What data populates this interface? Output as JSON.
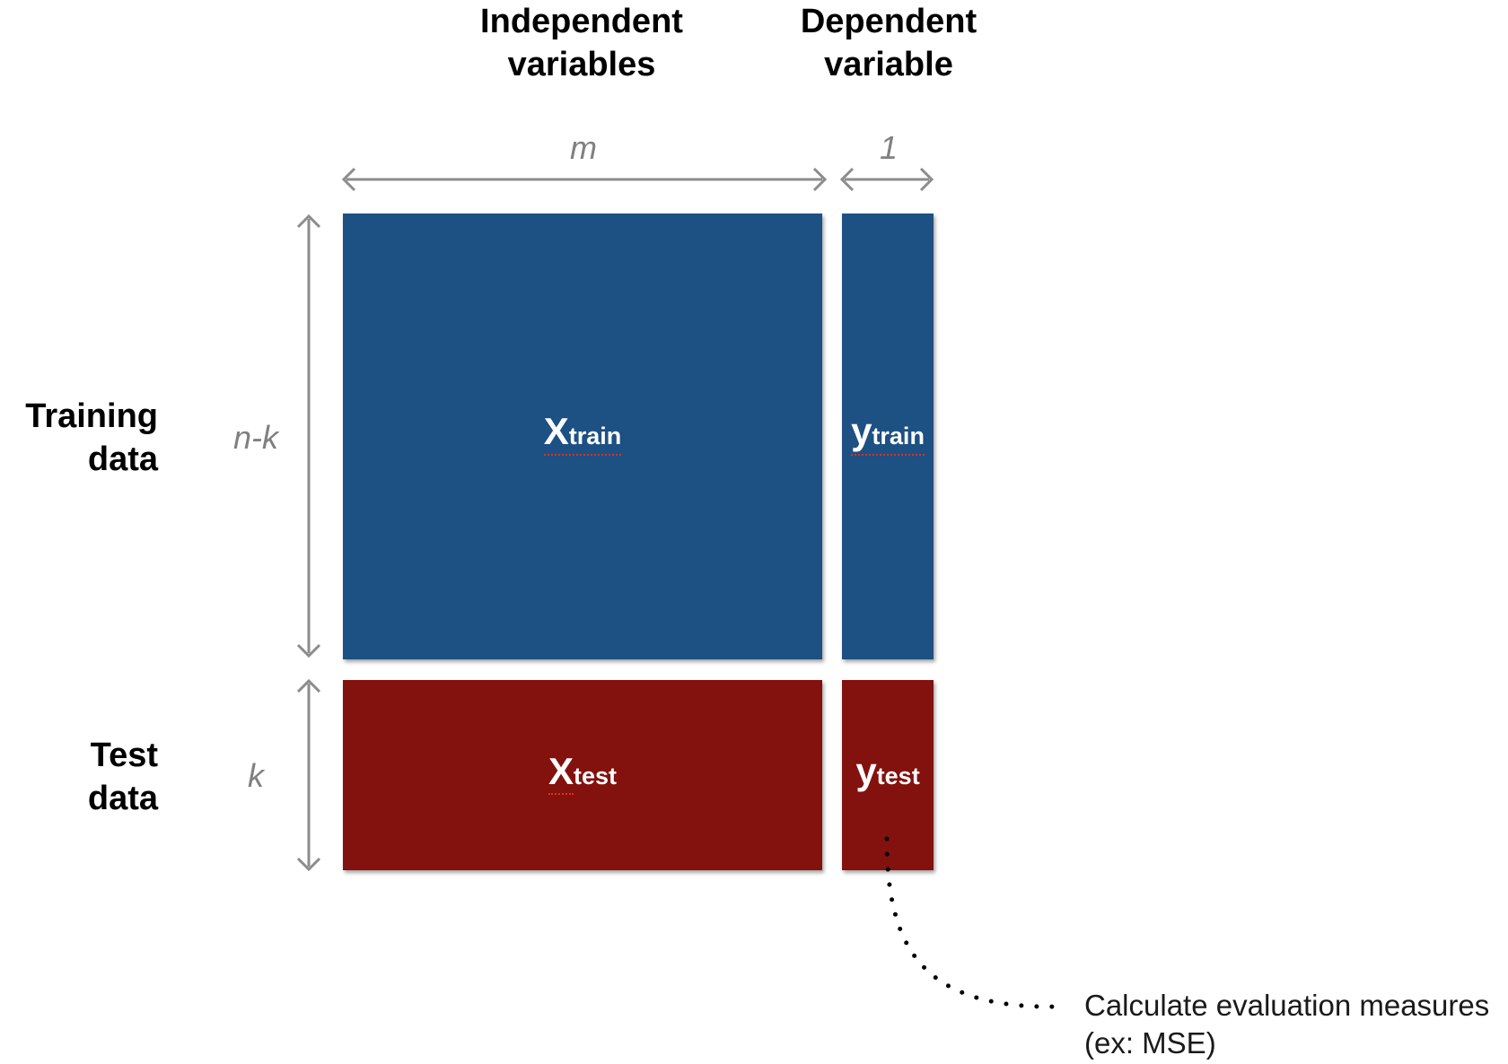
{
  "headers": {
    "independent": [
      "Independent",
      "variables"
    ],
    "dependent": [
      "Dependent",
      "variable"
    ]
  },
  "dimensions": {
    "columns_independent": "m",
    "columns_dependent": "1",
    "rows_training": "n-k",
    "rows_test": "k"
  },
  "row_labels": {
    "training": [
      "Training",
      "data"
    ],
    "test": [
      "Test",
      "data"
    ]
  },
  "blocks": {
    "x_train": {
      "main": "X",
      "sub": "train"
    },
    "y_train": {
      "main": "y",
      "sub": "train"
    },
    "x_test": {
      "main": "X",
      "sub": "test"
    },
    "y_test": {
      "main": "y",
      "sub": "test"
    }
  },
  "annotation": {
    "lines": [
      "Calculate evaluation measures",
      "(ex: MSE)"
    ]
  },
  "colors": {
    "training": "#1d5083",
    "test": "#83110d",
    "arrows": "#8c8c8c"
  }
}
